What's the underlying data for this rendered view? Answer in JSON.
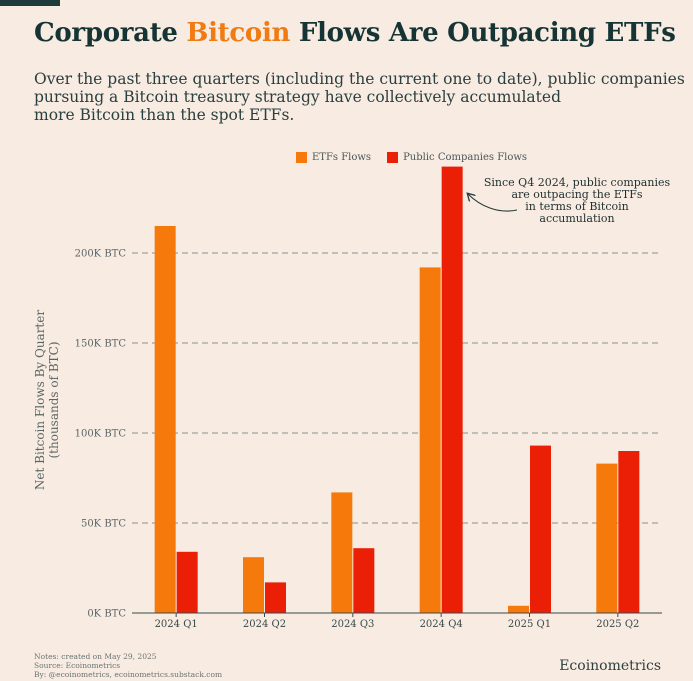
{
  "header": {
    "title_pre": "Corporate ",
    "title_accent": "Bitcoin",
    "title_post": " Flows Are Outpacing ETFs",
    "subtitle_lines": [
      "Over the past three quarters (including the current one to date), public companies",
      "pursuing a Bitcoin treasury strategy have collectively accumulated",
      "more Bitcoin than the spot ETFs."
    ]
  },
  "colors": {
    "etf": "#f57a0b",
    "companies": "#ea1f05",
    "accent": "#f07b12",
    "background": "#f7ebe2"
  },
  "chart_data": {
    "type": "bar",
    "categories": [
      "2024 Q1",
      "2024 Q2",
      "2024 Q3",
      "2024 Q4",
      "2025 Q1",
      "2025 Q2"
    ],
    "series": [
      {
        "name": "ETFs Flows",
        "values": [
          215,
          31,
          67,
          192,
          4,
          83
        ]
      },
      {
        "name": "Public Companies Flows",
        "values": [
          34,
          17,
          36,
          248,
          93,
          90
        ]
      }
    ],
    "ylabel_lines": [
      "Net Bitcoin Flows By Quarter",
      "(thousands of BTC)"
    ],
    "yticks": [
      0,
      50,
      100,
      150,
      200
    ],
    "ytick_labels": [
      "0K BTC",
      "50K BTC",
      "100K BTC",
      "150K BTC",
      "200K BTC"
    ],
    "ylim": [
      0,
      250
    ],
    "grid": true,
    "legend_position": "top-center",
    "annotation_lines": [
      "Since Q4 2024, public companies",
      "are outpacing the ETFs",
      "in terms of Bitcoin",
      "accumulation"
    ]
  },
  "footer": {
    "notes": [
      "Notes: created on May 29, 2025",
      "Source: Ecoinometrics",
      "By: @ecoinometrics, ecoinometrics.substack.com"
    ],
    "brand": "Ecoinometrics"
  }
}
